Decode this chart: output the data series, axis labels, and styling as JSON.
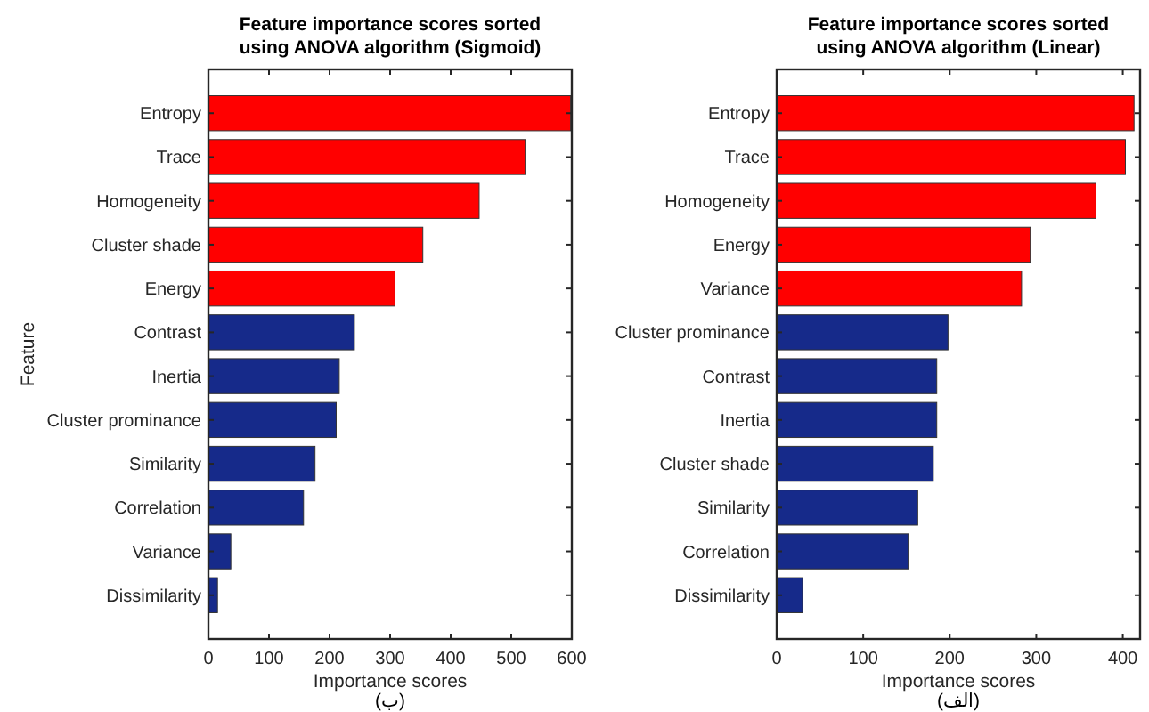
{
  "chart_data": [
    {
      "type": "bar",
      "orientation": "horizontal",
      "title": "Feature importance scores sorted\nusing ANOVA algorithm (Sigmoid)",
      "xlabel": "Importance scores",
      "ylabel": "Feature",
      "categories": [
        "Entropy",
        "Trace",
        "Homogeneity",
        "Cluster shade",
        "Energy",
        "Contrast",
        "Inertia",
        "Cluster prominance",
        "Similarity",
        "Correlation",
        "Variance",
        "Dissimilarity"
      ],
      "values": [
        598,
        523,
        447,
        354,
        308,
        241,
        216,
        211,
        176,
        157,
        37,
        15
      ],
      "colors": [
        "#ff0000",
        "#ff0000",
        "#ff0000",
        "#ff0000",
        "#ff0000",
        "#162a8a",
        "#162a8a",
        "#162a8a",
        "#162a8a",
        "#162a8a",
        "#162a8a",
        "#162a8a"
      ],
      "xlim": [
        0,
        600
      ],
      "xticks": [
        0,
        100,
        200,
        300,
        400,
        500,
        600
      ],
      "grid": false,
      "annotations": [
        "(ب)"
      ]
    },
    {
      "type": "bar",
      "orientation": "horizontal",
      "title": "Feature importance scores sorted\nusing ANOVA algorithm (Linear)",
      "xlabel": "Importance scores",
      "categories": [
        "Entropy",
        "Trace",
        "Homogeneity",
        "Energy",
        "Variance",
        "Cluster prominance",
        "Contrast",
        "Inertia",
        "Cluster shade",
        "Similarity",
        "Correlation",
        "Dissimilarity"
      ],
      "values": [
        413,
        403,
        369,
        293,
        283,
        198,
        185,
        185,
        181,
        163,
        152,
        30
      ],
      "colors": [
        "#ff0000",
        "#ff0000",
        "#ff0000",
        "#ff0000",
        "#ff0000",
        "#162a8a",
        "#162a8a",
        "#162a8a",
        "#162a8a",
        "#162a8a",
        "#162a8a",
        "#162a8a"
      ],
      "xlim": [
        0,
        420
      ],
      "xticks": [
        0,
        100,
        200,
        300,
        400
      ],
      "grid": false,
      "annotations": [
        "(الف)"
      ]
    }
  ]
}
